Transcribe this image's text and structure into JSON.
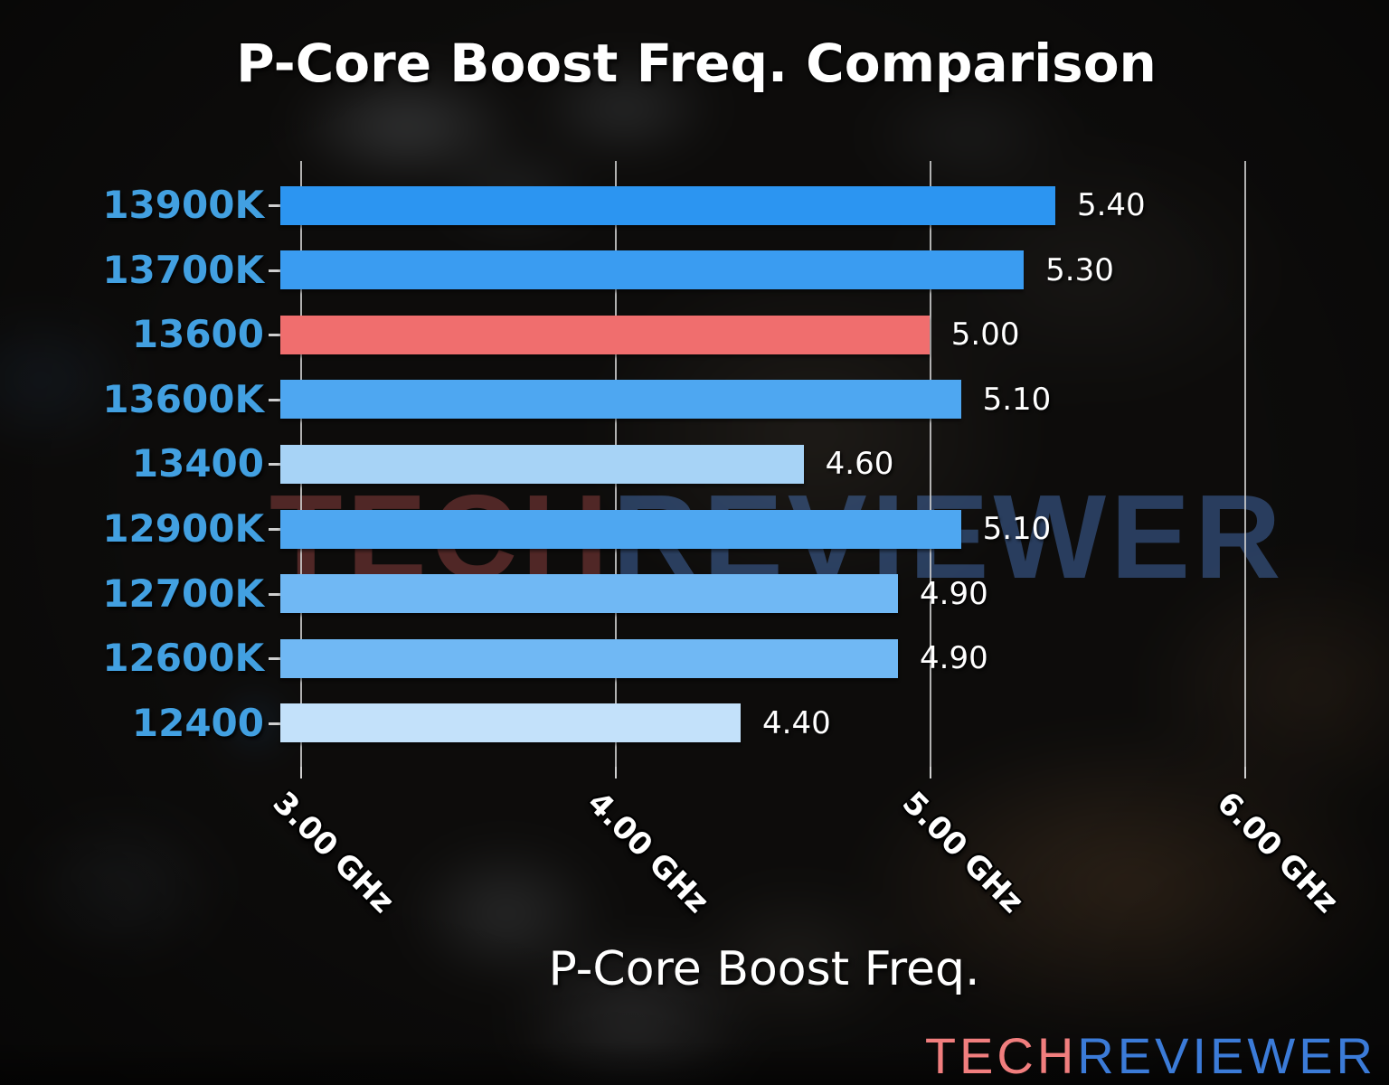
{
  "chart_data": {
    "type": "bar",
    "orientation": "horizontal",
    "title": "P-Core Boost Freq. Comparison",
    "xlabel": "P-Core Boost Freq.",
    "categories": [
      "13900K",
      "13700K",
      "13600",
      "13600K",
      "13400",
      "12900K",
      "12700K",
      "12600K",
      "12400"
    ],
    "values": [
      5.4,
      5.3,
      5.0,
      5.1,
      4.6,
      5.1,
      4.9,
      4.9,
      4.4
    ],
    "value_labels": [
      "5.40",
      "5.30",
      "5.00",
      "5.10",
      "4.60",
      "5.10",
      "4.90",
      "4.90",
      "4.40"
    ],
    "bar_colors": [
      "#2C95F1",
      "#3A9CF1",
      "#F06E6E",
      "#4EA7F1",
      "#A7D3F6",
      "#4EA7F1",
      "#70B8F4",
      "#70B8F4",
      "#C3E1FA"
    ],
    "highlight_category": "13600",
    "x_ticks": [
      "3.00 GHz",
      "4.00 GHz",
      "5.00 GHz",
      "6.00 GHz"
    ],
    "x_tick_values": [
      3.0,
      4.0,
      5.0,
      6.0
    ],
    "xlim": [
      2.937,
      6.337
    ],
    "grid": true,
    "legend": null
  },
  "watermark": {
    "tech": "TECH",
    "reviewer": "REVIEWER"
  },
  "logo": {
    "tech": "TECH",
    "reviewer": "REVIEWER"
  },
  "colors": {
    "category_label": "#42A0E1",
    "grid_line": "#CFCFCF",
    "value_label": "#FFFFFF",
    "tick_label": "#FFFFFF",
    "title_text": "#FFFFFF",
    "highlight_bar": "#F06E6E",
    "logo_tech": "#F17E7E",
    "logo_reviewer": "#3B7BD8"
  }
}
